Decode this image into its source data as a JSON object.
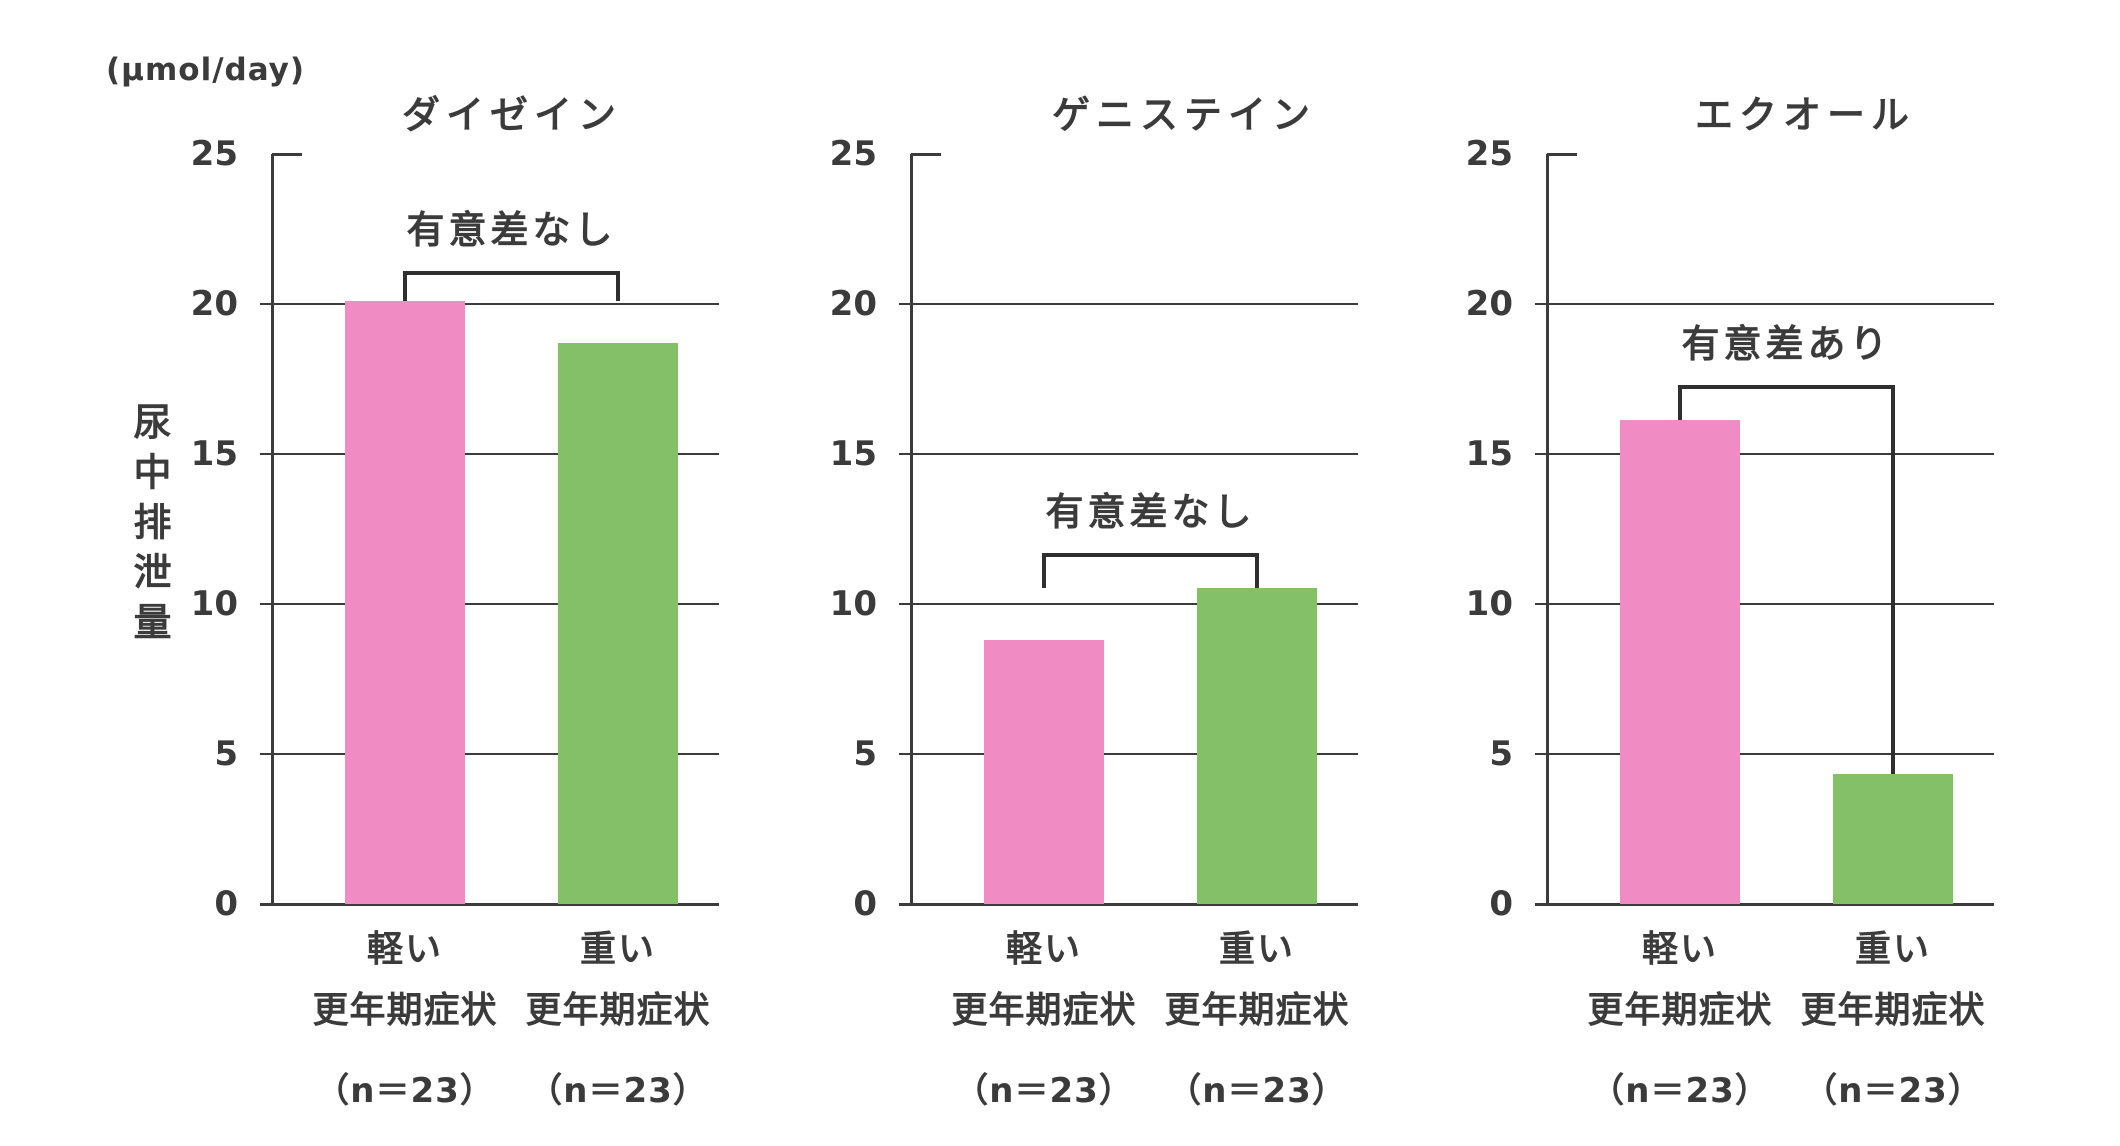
{
  "chart_data": {
    "type": "bar",
    "unit": "(μmol/day)",
    "ylabel": "尿中排泄量",
    "ylim": [
      0,
      25
    ],
    "y_ticks": [
      25,
      20,
      15,
      10,
      5,
      0
    ],
    "grid": "horizontal lines at 5,10,15,20; short tick at 25",
    "legend_position": "none",
    "groups": [
      {
        "label": "軽い",
        "sub": "更年期症状",
        "n": "（n＝23）"
      },
      {
        "label": "重い",
        "sub": "更年期症状",
        "n": "（n＝23）"
      }
    ],
    "charts": [
      {
        "title": "ダイゼイン",
        "annotation": "有意差なし",
        "significant": false,
        "categories": [
          "軽い更年期症状",
          "重い更年期症状"
        ],
        "values": [
          20.1,
          18.7
        ],
        "bracket": {
          "top": 21.1,
          "left_end": 20.1,
          "right_end": 20.1
        }
      },
      {
        "title": "ゲニステイン",
        "annotation": "有意差なし",
        "significant": false,
        "categories": [
          "軽い更年期症状",
          "重い更年期症状"
        ],
        "values": [
          8.8,
          10.55
        ],
        "bracket": {
          "top": 11.7,
          "left_end": 10.55,
          "right_end": 10.55
        }
      },
      {
        "title": "エクオール",
        "annotation": "有意差あり",
        "significant": true,
        "categories": [
          "軽い更年期症状",
          "重い更年期症状"
        ],
        "values": [
          16.15,
          4.35
        ],
        "bracket": {
          "top": 17.3,
          "left_end": 16.15,
          "right_end": 4.35
        }
      }
    ],
    "colors": {
      "light_bar": "#F08BC4",
      "heavy_bar": "#83C067",
      "axis": "#3B3B3B",
      "bracket": "#2F2F2F",
      "text": "#3B3B3B"
    }
  }
}
